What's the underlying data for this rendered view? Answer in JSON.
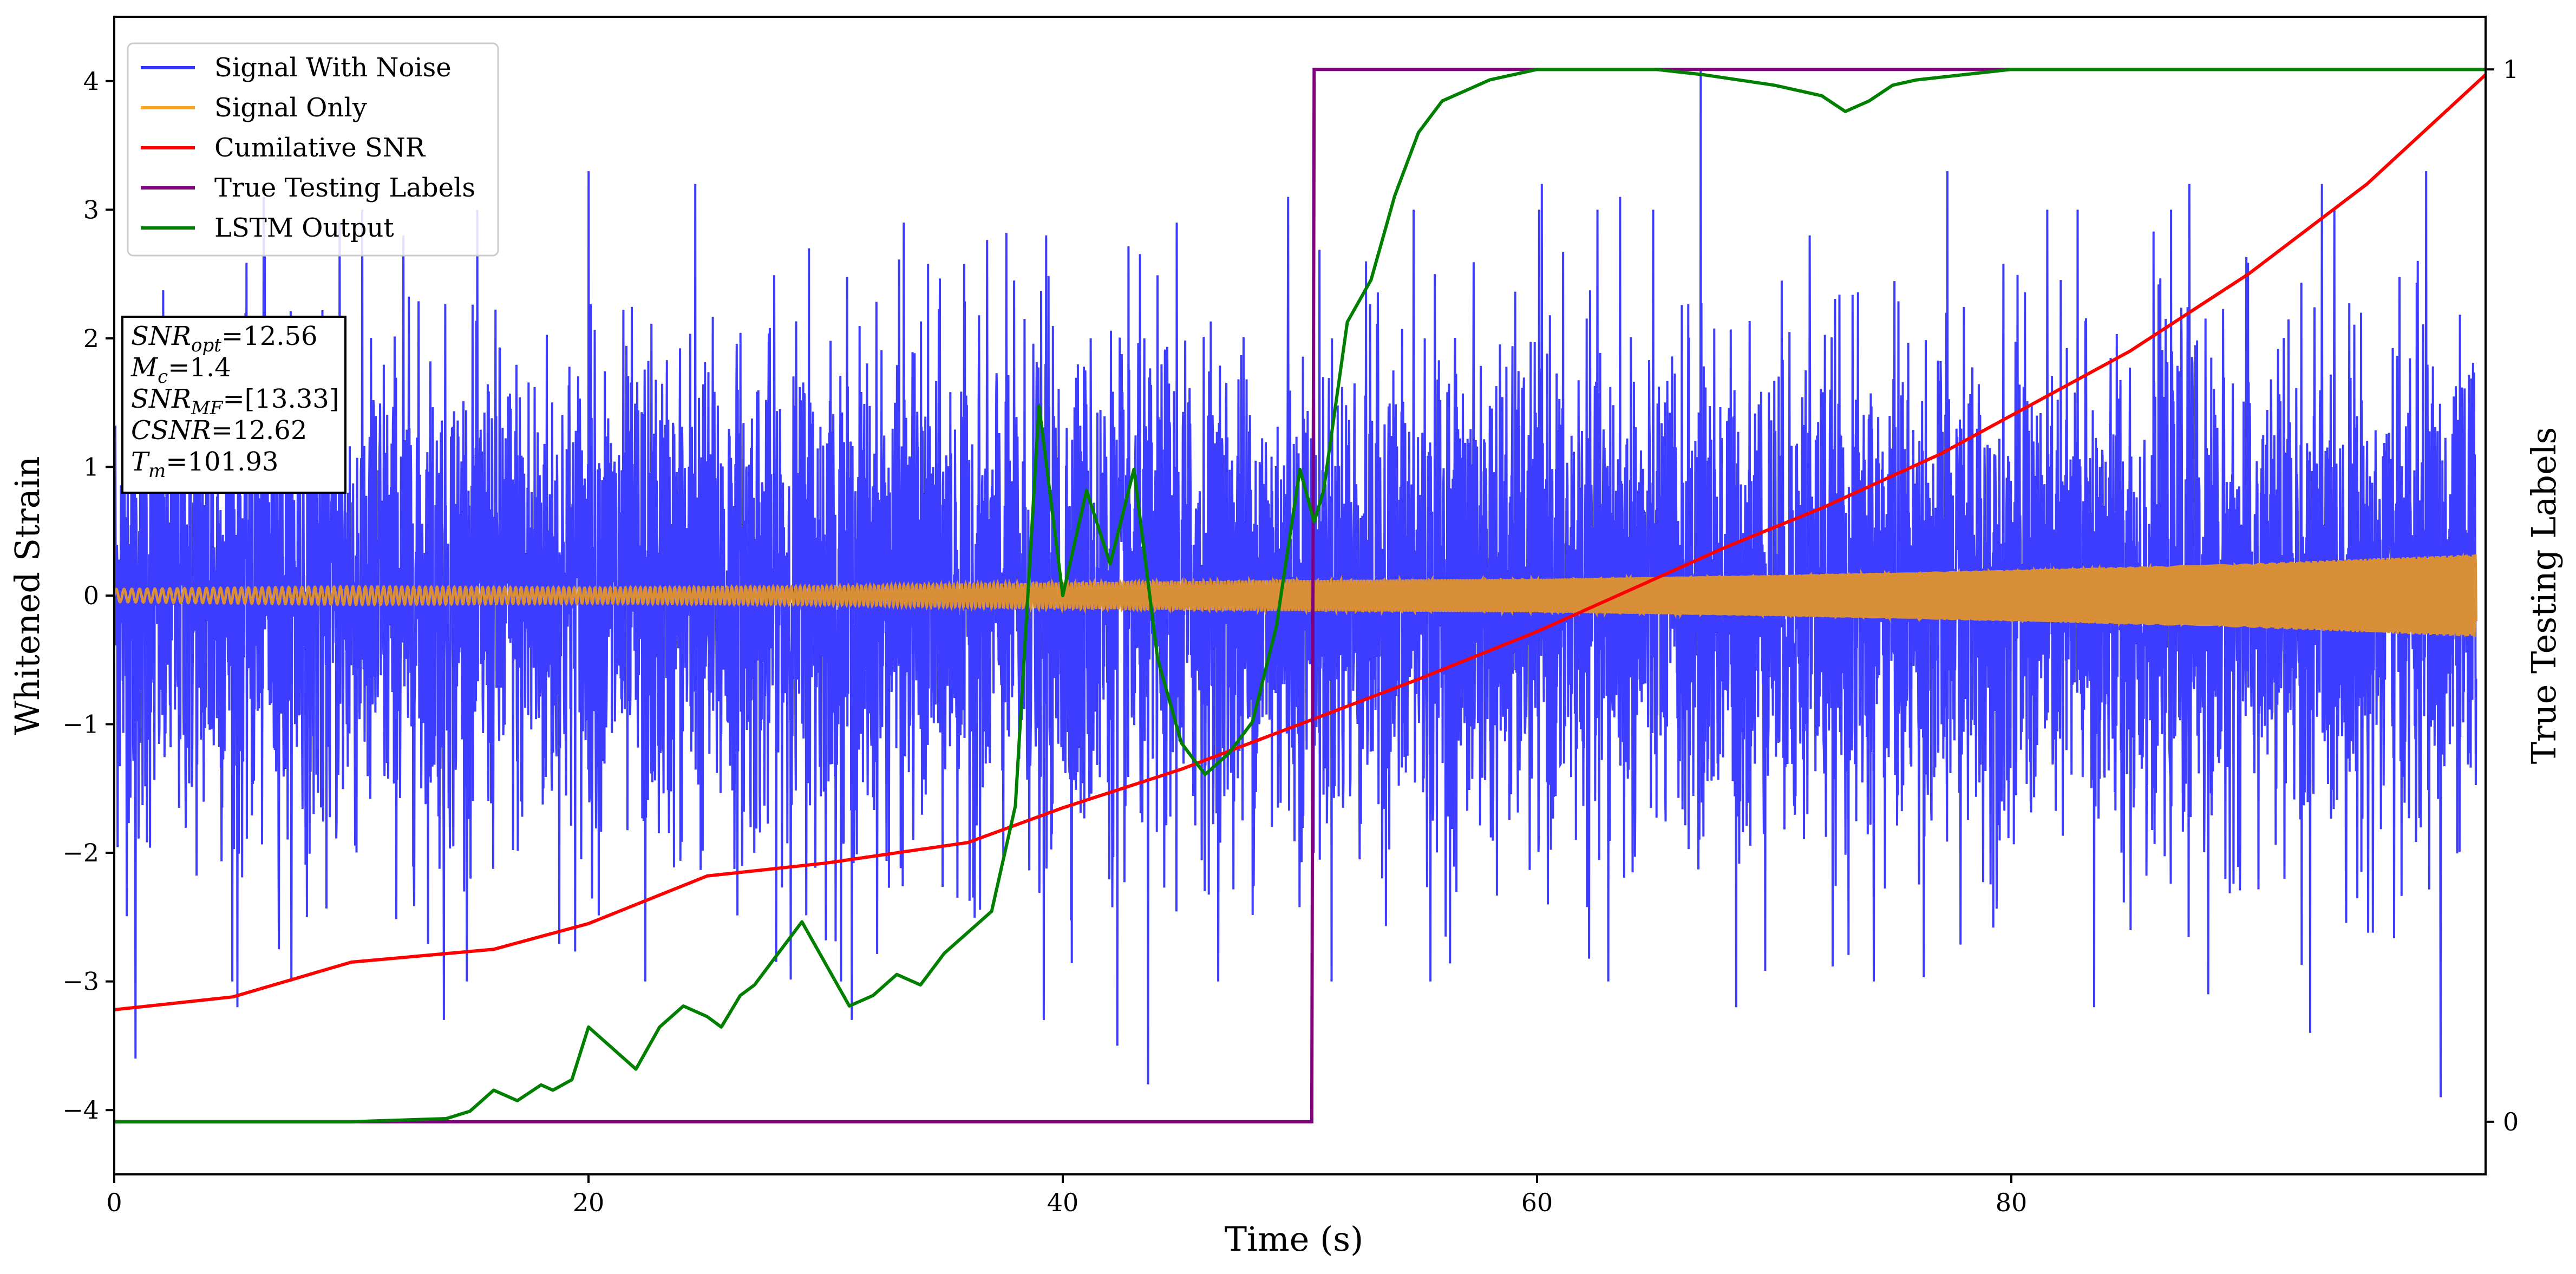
{
  "chart_data": {
    "type": "line",
    "x_axis": {
      "label": "Time (s)",
      "range": [
        0,
        100
      ],
      "ticks": [
        0,
        20,
        40,
        60,
        80
      ]
    },
    "y_left": {
      "label": "Whitened Strain",
      "range": [
        -4.5,
        4.5
      ],
      "ticks": [
        -4,
        -3,
        -2,
        -1,
        0,
        1,
        2,
        3,
        4
      ]
    },
    "y_right": {
      "label": "True Testing Labels",
      "range": [
        -0.05,
        1.05
      ],
      "ticks": [
        0,
        1
      ]
    },
    "grid": false,
    "legend_position": "top-left",
    "legend": [
      {
        "name": "Signal With Noise",
        "color": "#3333ff"
      },
      {
        "name": "Signal Only",
        "color": "#f5a623"
      },
      {
        "name": "Cumilative SNR",
        "color": "#ff0000"
      },
      {
        "name": "True Testing Labels",
        "color": "#800080"
      },
      {
        "name": "LSTM Output",
        "color": "#007f00"
      }
    ],
    "annotation": {
      "position": "upper-left",
      "lines": [
        {
          "name": "SNR",
          "sub": "opt",
          "value": "=12.56"
        },
        {
          "name": "M",
          "sub": "c",
          "value": "=1.4"
        },
        {
          "name": "SNR",
          "sub": "MF",
          "value": "=[13.33]"
        },
        {
          "name": "CSNR",
          "sub": "",
          "value": "=12.62"
        },
        {
          "name": "T",
          "sub": "m",
          "value": "=101.93"
        }
      ]
    },
    "series": [
      {
        "name": "Signal With Noise",
        "color": "#3333ff",
        "axis": "left",
        "description_envelope": {
          "typical_amplitude": 1.0,
          "max": 4.1,
          "min": -3.9
        },
        "peaks": [
          [
            6.3,
            3.1
          ],
          [
            9.5,
            2.9
          ],
          [
            12.2,
            2.8
          ],
          [
            20.0,
            3.3
          ],
          [
            24.5,
            3.2
          ],
          [
            29.3,
            2.7
          ],
          [
            33.3,
            2.9
          ],
          [
            39.3,
            2.8
          ],
          [
            44.8,
            2.9
          ],
          [
            49.5,
            3.1
          ],
          [
            54.8,
            3.0
          ],
          [
            60.2,
            3.2
          ],
          [
            63.5,
            3.1
          ],
          [
            66.9,
            4.1
          ],
          [
            71.5,
            2.8
          ],
          [
            77.3,
            3.3
          ],
          [
            82.8,
            3.0
          ],
          [
            87.5,
            3.2
          ],
          [
            93.1,
            3.2
          ],
          [
            97.5,
            3.3
          ]
        ],
        "troughs": [
          [
            0.9,
            -3.6
          ],
          [
            5.2,
            -3.2
          ],
          [
            13.9,
            -3.3
          ],
          [
            22.4,
            -3.0
          ],
          [
            31.1,
            -3.3
          ],
          [
            39.2,
            -3.3
          ],
          [
            42.3,
            -3.5
          ],
          [
            43.6,
            -3.8
          ],
          [
            55.5,
            -3.0
          ],
          [
            63.0,
            -3.0
          ],
          [
            68.4,
            -3.2
          ],
          [
            74.2,
            -3.0
          ],
          [
            83.5,
            -3.2
          ],
          [
            88.3,
            -3.1
          ],
          [
            92.6,
            -3.4
          ],
          [
            98.1,
            -3.9
          ]
        ]
      },
      {
        "name": "Signal Only",
        "color": "#f5a623",
        "axis": "left",
        "amplitude_envelope": [
          [
            0,
            0.05
          ],
          [
            10,
            0.07
          ],
          [
            20,
            0.06
          ],
          [
            30,
            0.07
          ],
          [
            40,
            0.1
          ],
          [
            50,
            0.12
          ],
          [
            60,
            0.13
          ],
          [
            70,
            0.16
          ],
          [
            80,
            0.2
          ],
          [
            90,
            0.25
          ],
          [
            99.5,
            0.32
          ]
        ]
      },
      {
        "name": "Cumilative SNR",
        "color": "#ff0000",
        "axis": "left",
        "x": [
          0,
          5,
          10,
          16,
          20,
          25,
          30,
          36,
          40,
          45,
          50,
          55,
          60,
          64,
          68,
          72,
          77,
          80,
          85,
          90,
          95,
          100
        ],
        "y": [
          -3.22,
          -3.12,
          -2.85,
          -2.75,
          -2.55,
          -2.18,
          -2.08,
          -1.92,
          -1.65,
          -1.35,
          -1.0,
          -0.65,
          -0.28,
          0.05,
          0.38,
          0.68,
          1.1,
          1.4,
          1.9,
          2.5,
          3.2,
          4.05
        ]
      },
      {
        "name": "True Testing Labels",
        "color": "#800080",
        "axis": "right",
        "x": [
          0,
          50.5,
          50.6,
          100
        ],
        "y": [
          0,
          0,
          1,
          1
        ]
      },
      {
        "name": "LSTM Output",
        "color": "#007f00",
        "axis": "right",
        "x": [
          0,
          10,
          14,
          15,
          16,
          17,
          18,
          18.5,
          19.3,
          20,
          21,
          22,
          23,
          24,
          25,
          25.6,
          26.4,
          27,
          28,
          29,
          30,
          31,
          32,
          33,
          34,
          35,
          36,
          37,
          38,
          39,
          40,
          41,
          42,
          43,
          44,
          45,
          46,
          47,
          48,
          49,
          50,
          50.6,
          51,
          52,
          53,
          54,
          55,
          56,
          57,
          58,
          59,
          60,
          62,
          65,
          67,
          70,
          72,
          73,
          74,
          75,
          76,
          78,
          80,
          100
        ],
        "y": [
          0.0,
          0.0,
          0.003,
          0.01,
          0.03,
          0.02,
          0.035,
          0.03,
          0.04,
          0.09,
          0.07,
          0.05,
          0.09,
          0.11,
          0.1,
          0.09,
          0.12,
          0.13,
          0.16,
          0.19,
          0.15,
          0.11,
          0.12,
          0.14,
          0.13,
          0.16,
          0.18,
          0.2,
          0.3,
          0.68,
          0.5,
          0.6,
          0.53,
          0.62,
          0.44,
          0.36,
          0.33,
          0.35,
          0.38,
          0.47,
          0.62,
          0.57,
          0.6,
          0.76,
          0.8,
          0.88,
          0.94,
          0.97,
          0.98,
          0.99,
          0.995,
          1.0,
          1.0,
          1.0,
          0.995,
          0.985,
          0.975,
          0.96,
          0.97,
          0.985,
          0.99,
          0.995,
          1.0,
          1.0
        ]
      }
    ]
  }
}
